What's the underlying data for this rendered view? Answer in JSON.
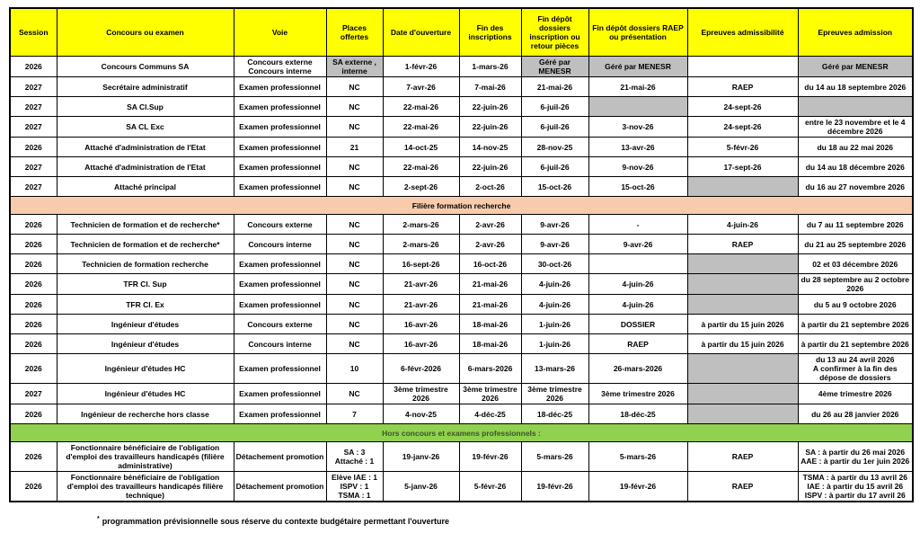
{
  "colors": {
    "header_bg": "#ffff00",
    "gray_cell": "#bfbfbf",
    "section_recherche_bg": "#f8cbad",
    "section_hors_bg": "#92d050",
    "section_hors_text": "#375623",
    "border": "#000000"
  },
  "table": {
    "columns": [
      "Session",
      "Concours ou examen",
      "Voie",
      "Places offertes",
      "Date d'ouverture",
      "Fin des\ninscriptions",
      "Fin dépôt\ndossiers\ninscription ou\nretour pièces",
      "Fin dépôt dossiers RAEP\nou présentation",
      "Epreuves admissibilité",
      "Epreuves admission"
    ],
    "rows": [
      {
        "type": "data",
        "cells": [
          {
            "t": "2026"
          },
          {
            "t": "Concours Communs SA"
          },
          {
            "t": "Concours externe\nConcours interne"
          },
          {
            "t": "SA externe , interne",
            "gray": true
          },
          {
            "t": "1-févr-26"
          },
          {
            "t": "1-mars-26"
          },
          {
            "t": "Géré par MENESR",
            "gray": true
          },
          {
            "t": "Géré par MENESR",
            "gray": true
          },
          {
            "t": ""
          },
          {
            "t": "Géré par MENESR",
            "gray": true
          }
        ]
      },
      {
        "type": "data",
        "cells": [
          {
            "t": "2027"
          },
          {
            "t": "Secrétaire administratif"
          },
          {
            "t": "Examen professionnel"
          },
          {
            "t": "NC"
          },
          {
            "t": "7-avr-26"
          },
          {
            "t": "7-mai-26"
          },
          {
            "t": "21-mai-26"
          },
          {
            "t": "21-mai-26"
          },
          {
            "t": "RAEP"
          },
          {
            "t": "du 14 au 18 septembre 2026"
          }
        ]
      },
      {
        "type": "data",
        "cells": [
          {
            "t": "2027"
          },
          {
            "t": "SA Cl.Sup"
          },
          {
            "t": "Examen professionnel"
          },
          {
            "t": "NC"
          },
          {
            "t": "22-mai-26"
          },
          {
            "t": "22-juin-26"
          },
          {
            "t": "6-juil-26"
          },
          {
            "t": "",
            "gray": true
          },
          {
            "t": "24-sept-26"
          },
          {
            "t": "",
            "gray": true
          }
        ]
      },
      {
        "type": "data",
        "cells": [
          {
            "t": "2027"
          },
          {
            "t": "SA CL Exc"
          },
          {
            "t": "Examen professionnel"
          },
          {
            "t": "NC"
          },
          {
            "t": "22-mai-26"
          },
          {
            "t": "22-juin-26"
          },
          {
            "t": "6-juil-26"
          },
          {
            "t": "3-nov-26"
          },
          {
            "t": "24-sept-26"
          },
          {
            "t": "entre le 23 novembre et le 4 décembre 2026"
          }
        ]
      },
      {
        "type": "data",
        "cells": [
          {
            "t": "2026"
          },
          {
            "t": "Attaché d'administration de l'Etat"
          },
          {
            "t": "Examen professionnel"
          },
          {
            "t": "21"
          },
          {
            "t": "14-oct-25"
          },
          {
            "t": "14-nov-25"
          },
          {
            "t": "28-nov-25"
          },
          {
            "t": "13-avr-26"
          },
          {
            "t": "5-févr-26"
          },
          {
            "t": "du 18 au 22 mai 2026"
          }
        ]
      },
      {
        "type": "data",
        "cells": [
          {
            "t": "2027"
          },
          {
            "t": "Attaché d'administration de l'Etat"
          },
          {
            "t": "Examen professionnel"
          },
          {
            "t": "NC"
          },
          {
            "t": "22-mai-26"
          },
          {
            "t": "22-juin-26"
          },
          {
            "t": "6-juil-26"
          },
          {
            "t": "9-nov-26"
          },
          {
            "t": "17-sept-26"
          },
          {
            "t": "du 14 au 18 décembre 2026"
          }
        ]
      },
      {
        "type": "data",
        "cells": [
          {
            "t": "2027"
          },
          {
            "t": "Attaché principal"
          },
          {
            "t": "Examen professionnel"
          },
          {
            "t": "NC"
          },
          {
            "t": "2-sept-26"
          },
          {
            "t": "2-oct-26"
          },
          {
            "t": "15-oct-26"
          },
          {
            "t": "15-oct-26"
          },
          {
            "t": "",
            "gray": true
          },
          {
            "t": "du 16 au 27 novembre 2026"
          }
        ]
      },
      {
        "type": "section",
        "style": "recherche",
        "label": "Filière formation recherche"
      },
      {
        "type": "data",
        "cells": [
          {
            "t": "2026"
          },
          {
            "t": "Technicien de formation et de recherche*"
          },
          {
            "t": "Concours externe"
          },
          {
            "t": "NC"
          },
          {
            "t": "2-mars-26"
          },
          {
            "t": "2-avr-26"
          },
          {
            "t": "9-avr-26"
          },
          {
            "t": "-"
          },
          {
            "t": "4-juin-26"
          },
          {
            "t": "du 7 au 11 septembre 2026"
          }
        ]
      },
      {
        "type": "data",
        "cells": [
          {
            "t": "2026"
          },
          {
            "t": "Technicien de formation et de recherche*"
          },
          {
            "t": "Concours interne"
          },
          {
            "t": "NC"
          },
          {
            "t": "2-mars-26"
          },
          {
            "t": "2-avr-26"
          },
          {
            "t": "9-avr-26"
          },
          {
            "t": "9-avr-26"
          },
          {
            "t": "RAEP"
          },
          {
            "t": "du 21 au 25 septembre 2026"
          }
        ]
      },
      {
        "type": "data",
        "cells": [
          {
            "t": "2026"
          },
          {
            "t": "Technicien de formation recherche"
          },
          {
            "t": "Examen professionnel"
          },
          {
            "t": "NC"
          },
          {
            "t": "16-sept-26"
          },
          {
            "t": "16-oct-26"
          },
          {
            "t": "30-oct-26"
          },
          {
            "t": ""
          },
          {
            "t": "",
            "gray": true
          },
          {
            "t": "02 et 03 décembre 2026"
          }
        ]
      },
      {
        "type": "data",
        "cells": [
          {
            "t": "2026"
          },
          {
            "t": "TFR Cl. Sup"
          },
          {
            "t": "Examen professionnel"
          },
          {
            "t": "NC"
          },
          {
            "t": "21-avr-26"
          },
          {
            "t": "21-mai-26"
          },
          {
            "t": "4-juin-26"
          },
          {
            "t": "4-juin-26"
          },
          {
            "t": "",
            "gray": true
          },
          {
            "t": "du 28 septembre au 2 octobre 2026"
          }
        ]
      },
      {
        "type": "data",
        "cells": [
          {
            "t": "2026"
          },
          {
            "t": "TFR Cl. Ex"
          },
          {
            "t": "Examen professionnel"
          },
          {
            "t": "NC"
          },
          {
            "t": "21-avr-26"
          },
          {
            "t": "21-mai-26"
          },
          {
            "t": "4-juin-26"
          },
          {
            "t": "4-juin-26"
          },
          {
            "t": "",
            "gray": true
          },
          {
            "t": "du 5 au 9 octobre 2026"
          }
        ]
      },
      {
        "type": "data",
        "cells": [
          {
            "t": "2026"
          },
          {
            "t": "Ingénieur d'études"
          },
          {
            "t": "Concours externe"
          },
          {
            "t": "NC"
          },
          {
            "t": "16-avr-26"
          },
          {
            "t": "18-mai-26"
          },
          {
            "t": "1-juin-26"
          },
          {
            "t": "DOSSIER"
          },
          {
            "t": "à partir du 15 juin 2026"
          },
          {
            "t": "à partir du 21 septembre 2026"
          }
        ]
      },
      {
        "type": "data",
        "cells": [
          {
            "t": "2026"
          },
          {
            "t": "Ingénieur d'études"
          },
          {
            "t": "Concours interne"
          },
          {
            "t": "NC"
          },
          {
            "t": "16-avr-26"
          },
          {
            "t": "18-mai-26"
          },
          {
            "t": "1-juin-26"
          },
          {
            "t": "RAEP"
          },
          {
            "t": "à partir du 15 juin 2026"
          },
          {
            "t": "à partir du 21 septembre 2026"
          }
        ]
      },
      {
        "type": "data",
        "cells": [
          {
            "t": "2026"
          },
          {
            "t": "Ingénieur d'études HC"
          },
          {
            "t": "Examen professionnel"
          },
          {
            "t": "10"
          },
          {
            "t": "6-févr-2026"
          },
          {
            "t": "6-mars-2026"
          },
          {
            "t": "13-mars-26"
          },
          {
            "t": "26-mars-2026"
          },
          {
            "t": "",
            "gray": true
          },
          {
            "t": "du 13 au 24 avril 2026\nA confirmer à la fin des dépose de dossiers"
          }
        ]
      },
      {
        "type": "data",
        "cells": [
          {
            "t": "2027"
          },
          {
            "t": "Ingénieur d'études HC"
          },
          {
            "t": "Examen professionnel"
          },
          {
            "t": "NC"
          },
          {
            "t": "3ème trimestre 2026"
          },
          {
            "t": "3ème trimestre 2026"
          },
          {
            "t": "3ème trimestre 2026"
          },
          {
            "t": "3ème trimestre 2026"
          },
          {
            "t": "",
            "gray": true
          },
          {
            "t": "4ème trimestre 2026"
          }
        ]
      },
      {
        "type": "data",
        "cells": [
          {
            "t": "2026"
          },
          {
            "t": "Ingénieur de recherche hors classe"
          },
          {
            "t": "Examen professionnel"
          },
          {
            "t": "7"
          },
          {
            "t": "4-nov-25"
          },
          {
            "t": "4-déc-25"
          },
          {
            "t": "18-déc-25"
          },
          {
            "t": "18-déc-25"
          },
          {
            "t": "",
            "gray": true
          },
          {
            "t": "du 26 au 28 janvier 2026"
          }
        ]
      },
      {
        "type": "section",
        "style": "hors",
        "label": "Hors concours et examens professionnels :"
      },
      {
        "type": "data",
        "cells": [
          {
            "t": "2026"
          },
          {
            "t": "Fonctionnaire bénéficiaire de l'obligation d'emploi des travailleurs handicapés (filière administrative)"
          },
          {
            "t": "Détachement promotion"
          },
          {
            "t": "SA :  3\nAttaché : 1"
          },
          {
            "t": "19-janv-26"
          },
          {
            "t": "19-févr-26"
          },
          {
            "t": "5-mars-26"
          },
          {
            "t": "5-mars-26"
          },
          {
            "t": "RAEP"
          },
          {
            "t": "SA : à partir du 26 mai 2026\nAAE : à partir du 1er juin 2026"
          }
        ]
      },
      {
        "type": "data",
        "cells": [
          {
            "t": "2026"
          },
          {
            "t": "Fonctionnaire bénéficiaire de l'obligation d'emploi des travailleurs handicapés filière technique)"
          },
          {
            "t": "Détachement promotion"
          },
          {
            "t": "Elève IAE : 1\nISPV : 1\nTSMA : 1"
          },
          {
            "t": "5-janv-26"
          },
          {
            "t": "5-févr-26"
          },
          {
            "t": "19-févr-26"
          },
          {
            "t": "19-févr-26"
          },
          {
            "t": "RAEP"
          },
          {
            "t": "TSMA : à partir du 13 avril 26\nIAE : à partir du 15 avril 26\nISPV : à partir du 17 avril 26"
          }
        ]
      }
    ]
  },
  "footnote": {
    "marker": "*",
    "text": "programmation prévisionnelle sous réserve du contexte budgétaire permettant l'ouverture"
  }
}
